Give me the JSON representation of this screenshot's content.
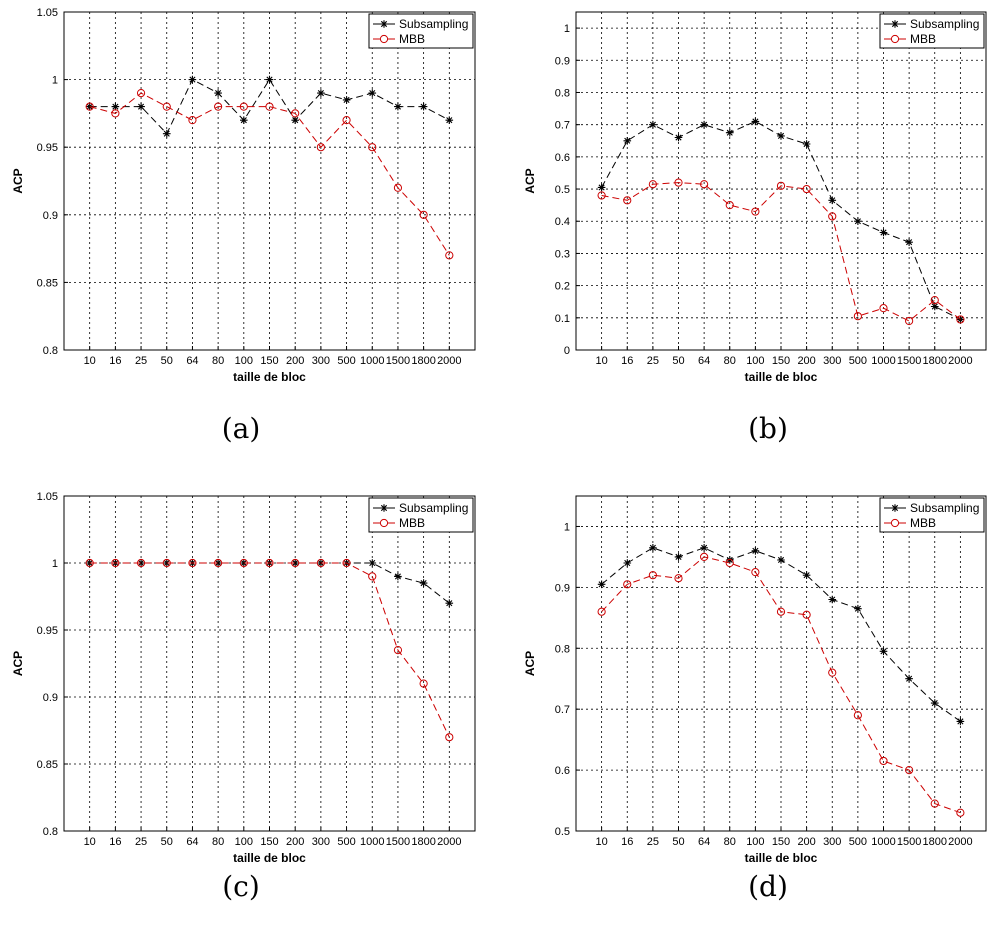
{
  "chart_data": [
    {
      "type": "line",
      "caption": "(a)",
      "xlabel": "taille de bloc",
      "ylabel": "ACP",
      "categories": [
        "10",
        "16",
        "25",
        "50",
        "64",
        "80",
        "100",
        "150",
        "200",
        "300",
        "500",
        "1000",
        "1500",
        "1800",
        "2000"
      ],
      "ylim": [
        0.8,
        1.05
      ],
      "yticks": [
        "0.8",
        "0.85",
        "0.9",
        "0.95",
        "1",
        "1.05"
      ],
      "grid": true,
      "legend_position": "top-right",
      "series": [
        {
          "name": "Subsampling",
          "color": "#000000",
          "marker": "star",
          "values": [
            0.98,
            0.98,
            0.98,
            0.96,
            1.0,
            0.99,
            0.97,
            1.0,
            0.97,
            0.99,
            0.985,
            0.99,
            0.98,
            0.98,
            0.97
          ]
        },
        {
          "name": "MBB",
          "color": "#cc0000",
          "marker": "circle",
          "values": [
            0.98,
            0.975,
            0.99,
            0.98,
            0.97,
            0.98,
            0.98,
            0.98,
            0.975,
            0.95,
            0.97,
            0.95,
            0.92,
            0.9,
            0.87
          ]
        }
      ]
    },
    {
      "type": "line",
      "caption": "(b)",
      "xlabel": "taille de bloc",
      "ylabel": "ACP",
      "categories": [
        "10",
        "16",
        "25",
        "50",
        "64",
        "80",
        "100",
        "150",
        "200",
        "300",
        "500",
        "1000",
        "1500",
        "1800",
        "2000"
      ],
      "ylim": [
        0,
        1.05
      ],
      "yticks": [
        "0",
        "0.1",
        "0.2",
        "0.3",
        "0.4",
        "0.5",
        "0.6",
        "0.7",
        "0.8",
        "0.9",
        "1"
      ],
      "grid": true,
      "legend_position": "top-right",
      "series": [
        {
          "name": "Subsampling",
          "color": "#000000",
          "marker": "star",
          "values": [
            0.505,
            0.65,
            0.7,
            0.66,
            0.7,
            0.675,
            0.71,
            0.665,
            0.64,
            0.465,
            0.4,
            0.365,
            0.335,
            0.135,
            0.095
          ]
        },
        {
          "name": "MBB",
          "color": "#cc0000",
          "marker": "circle",
          "values": [
            0.48,
            0.465,
            0.515,
            0.52,
            0.515,
            0.45,
            0.43,
            0.51,
            0.5,
            0.415,
            0.105,
            0.13,
            0.09,
            0.155,
            0.095
          ]
        }
      ]
    },
    {
      "type": "line",
      "caption": "(c)",
      "xlabel": "taille de bloc",
      "ylabel": "ACP",
      "categories": [
        "10",
        "16",
        "25",
        "50",
        "64",
        "80",
        "100",
        "150",
        "200",
        "300",
        "500",
        "1000",
        "1500",
        "1800",
        "2000"
      ],
      "ylim": [
        0.8,
        1.05
      ],
      "yticks": [
        "0.8",
        "0.85",
        "0.9",
        "0.95",
        "1",
        "1.05"
      ],
      "grid": true,
      "legend_position": "top-right",
      "series": [
        {
          "name": "Subsampling",
          "color": "#000000",
          "marker": "star",
          "values": [
            1.0,
            1.0,
            1.0,
            1.0,
            1.0,
            1.0,
            1.0,
            1.0,
            1.0,
            1.0,
            1.0,
            1.0,
            0.99,
            0.985,
            0.97
          ]
        },
        {
          "name": "MBB",
          "color": "#cc0000",
          "marker": "circle",
          "values": [
            1.0,
            1.0,
            1.0,
            1.0,
            1.0,
            1.0,
            1.0,
            1.0,
            1.0,
            1.0,
            1.0,
            0.99,
            0.935,
            0.91,
            0.87
          ]
        }
      ]
    },
    {
      "type": "line",
      "caption": "(d)",
      "xlabel": "taille de bloc",
      "ylabel": "ACP",
      "categories": [
        "10",
        "16",
        "25",
        "50",
        "64",
        "80",
        "100",
        "150",
        "200",
        "300",
        "500",
        "1000",
        "1500",
        "1800",
        "2000"
      ],
      "ylim": [
        0.5,
        1.05
      ],
      "yticks": [
        "0.5",
        "0.6",
        "0.7",
        "0.8",
        "0.9",
        "1"
      ],
      "grid": true,
      "legend_position": "top-right",
      "series": [
        {
          "name": "Subsampling",
          "color": "#000000",
          "marker": "star",
          "values": [
            0.905,
            0.94,
            0.965,
            0.95,
            0.965,
            0.945,
            0.96,
            0.945,
            0.92,
            0.88,
            0.865,
            0.795,
            0.75,
            0.71,
            0.68
          ]
        },
        {
          "name": "MBB",
          "color": "#cc0000",
          "marker": "circle",
          "values": [
            0.86,
            0.905,
            0.92,
            0.915,
            0.95,
            0.94,
            0.925,
            0.86,
            0.855,
            0.76,
            0.69,
            0.615,
            0.6,
            0.545,
            0.53
          ]
        }
      ]
    }
  ]
}
